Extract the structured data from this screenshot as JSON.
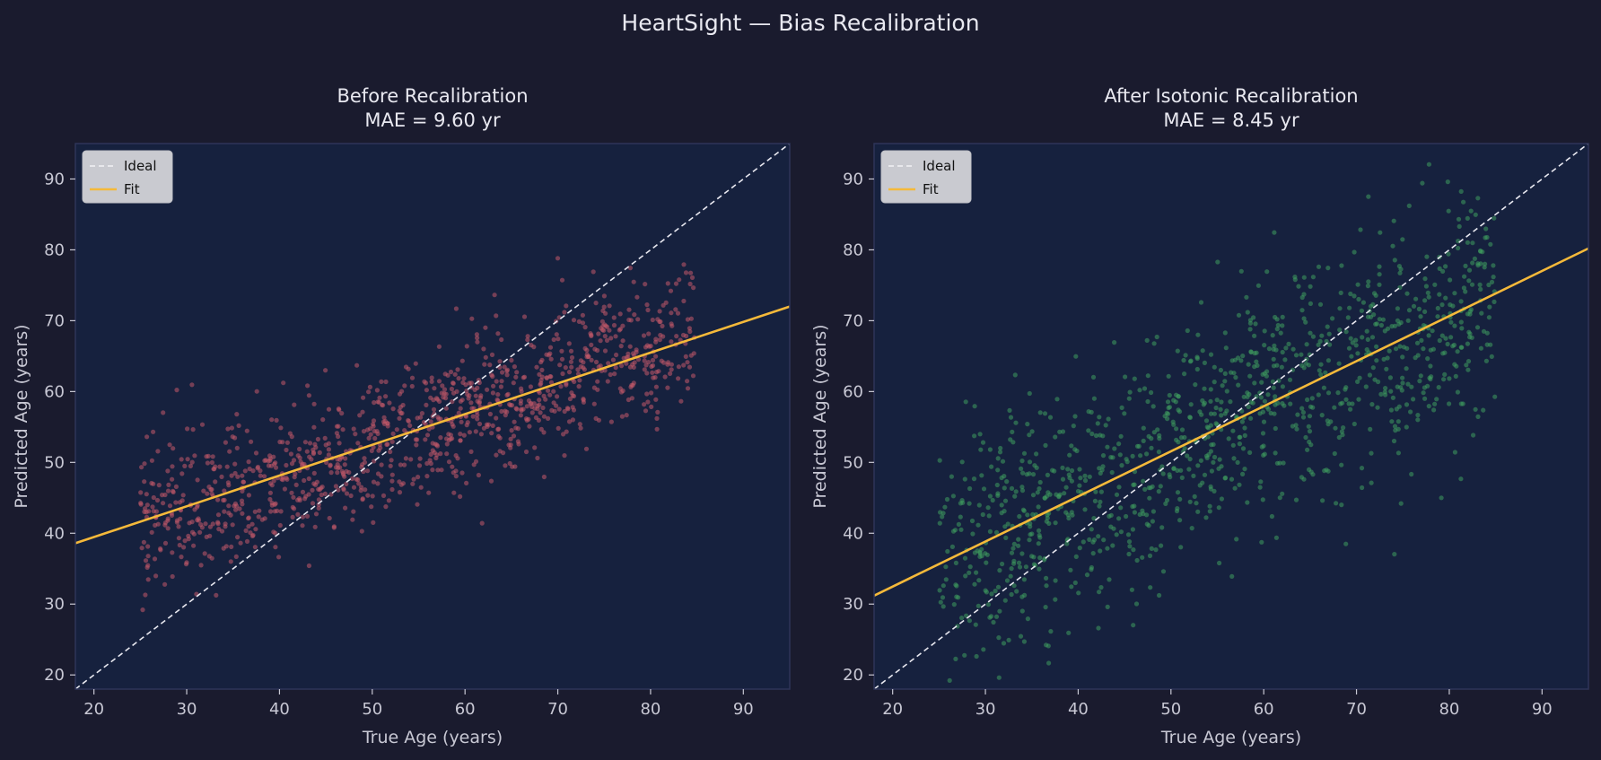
{
  "figure": {
    "title": "HeartSight — Bias Recalibration",
    "colors": {
      "background": "#1a1b2e",
      "axes_face": "#16213e",
      "spine": "#2e3458",
      "text": "#e8e8f0",
      "tick_text": "#c8c8d4",
      "ideal_line": "#e8e8f0",
      "fit_line": "#f5b93a",
      "legend_bg": "#d3d4d8",
      "legend_text": "#111111"
    }
  },
  "chart_data": [
    {
      "type": "scatter",
      "title": "Before Recalibration",
      "subtitle": "MAE = 9.60 yr",
      "xlabel": "True Age (years)",
      "ylabel": "Predicted Age (years)",
      "xlim": [
        18,
        95
      ],
      "ylim": [
        18,
        95
      ],
      "xticks": [
        20,
        30,
        40,
        50,
        60,
        70,
        80,
        90
      ],
      "yticks": [
        20,
        30,
        40,
        50,
        60,
        70,
        80,
        90
      ],
      "grid": false,
      "legend": {
        "placement": "top-left",
        "entries": [
          "Ideal",
          "Fit"
        ]
      },
      "point_color": "#c45a6a",
      "points": {
        "count": 1100,
        "x_range": [
          25,
          85
        ],
        "note_fit": "linear fit y = 0.433x + 30.8",
        "residual_sd": 5.0,
        "seed": 7
      },
      "ideal": {
        "name": "Ideal",
        "x": [
          18,
          95
        ],
        "y": [
          18,
          95
        ]
      },
      "fit": {
        "name": "Fit",
        "x": [
          18,
          95
        ],
        "y": [
          38.6,
          72.0
        ]
      }
    },
    {
      "type": "scatter",
      "title": "After Isotonic Recalibration",
      "subtitle": "MAE = 8.45 yr",
      "xlabel": "True Age (years)",
      "ylabel": "Predicted Age (years)",
      "xlim": [
        18,
        95
      ],
      "ylim": [
        18,
        95
      ],
      "xticks": [
        20,
        30,
        40,
        50,
        60,
        70,
        80,
        90
      ],
      "yticks": [
        20,
        30,
        40,
        50,
        60,
        70,
        80,
        90
      ],
      "grid": false,
      "legend": {
        "placement": "top-left",
        "entries": [
          "Ideal",
          "Fit"
        ]
      },
      "point_color": "#3f9e5e",
      "points": {
        "count": 1100,
        "x_range": [
          25,
          85
        ],
        "note_fit": "linear fit y = 0.636x + 19.8",
        "residual_sd": 8.2,
        "seed": 13
      },
      "ideal": {
        "name": "Ideal",
        "x": [
          18,
          95
        ],
        "y": [
          18,
          95
        ]
      },
      "fit": {
        "name": "Fit",
        "x": [
          18,
          95
        ],
        "y": [
          31.2,
          80.2
        ]
      }
    }
  ]
}
